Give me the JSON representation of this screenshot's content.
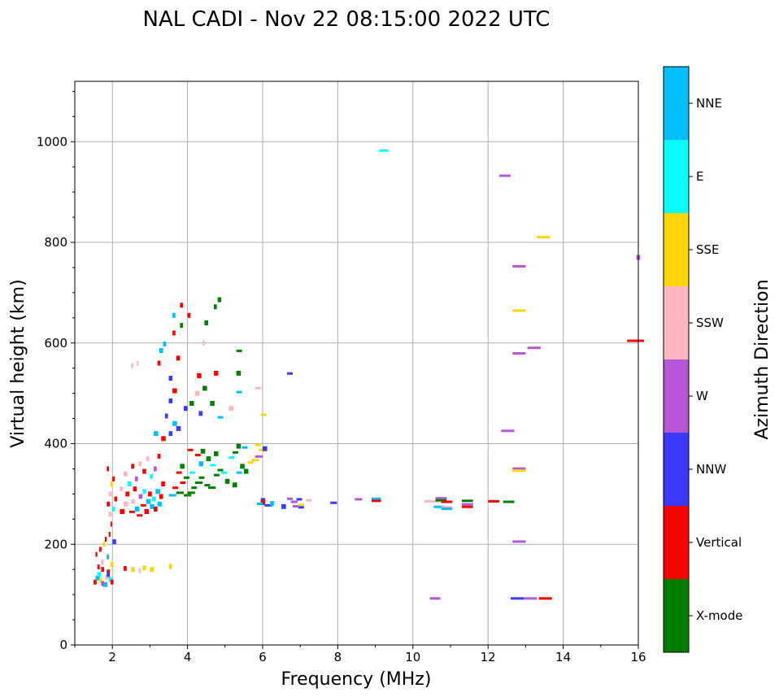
{
  "chart_data": {
    "type": "scatter",
    "title": "NAL CADI - Nov 22 08:15:00 2022 UTC",
    "xlabel": "Frequency (MHz)",
    "ylabel": "Virtual height (km)",
    "xlim": [
      1,
      16
    ],
    "ylim": [
      0,
      1120
    ],
    "xticks": [
      2,
      4,
      6,
      8,
      10,
      12,
      14,
      16
    ],
    "yticks": [
      0,
      200,
      400,
      600,
      800,
      1000
    ],
    "grid": true,
    "colorbar": {
      "label": "Azimuth Direction",
      "categories": [
        "X-mode",
        "Vertical",
        "NNW",
        "W",
        "SSW",
        "SSE",
        "E",
        "NNE"
      ],
      "colors": [
        "#008000",
        "#ff0000",
        "#3a3aff",
        "#b557d6",
        "#ffb6c1",
        "#ffd700",
        "#00ffff",
        "#00bfff"
      ]
    },
    "point_fields": [
      "freq_MHz",
      "height_km",
      "direction_index",
      "freq_width_MHz"
    ],
    "points": [
      [
        9.1,
        980,
        6,
        0.25
      ],
      [
        12.3,
        930,
        3,
        0.3
      ],
      [
        13.3,
        808,
        5,
        0.35
      ],
      [
        15.95,
        770,
        3,
        0.1
      ],
      [
        12.65,
        750,
        3,
        0.35
      ],
      [
        12.65,
        662,
        5,
        0.35
      ],
      [
        15.7,
        602,
        1,
        0.45
      ],
      [
        13.05,
        588,
        3,
        0.35
      ],
      [
        12.65,
        577,
        3,
        0.35
      ],
      [
        12.35,
        423,
        3,
        0.35
      ],
      [
        12.65,
        348,
        3,
        0.35
      ],
      [
        12.65,
        344,
        5,
        0.35
      ],
      [
        12.65,
        203,
        3,
        0.35
      ],
      [
        10.45,
        90,
        3,
        0.28
      ],
      [
        12.6,
        90,
        2,
        0.35
      ],
      [
        12.95,
        90,
        3,
        0.35
      ],
      [
        13.35,
        90,
        1,
        0.35
      ],
      [
        8.45,
        287,
        3,
        0.2
      ],
      [
        8.9,
        288,
        7,
        0.25
      ],
      [
        8.9,
        284,
        1,
        0.25
      ],
      [
        10.3,
        283,
        4,
        0.4
      ],
      [
        10.6,
        289,
        3,
        0.3
      ],
      [
        10.6,
        285,
        0,
        0.3
      ],
      [
        10.75,
        282,
        1,
        0.3
      ],
      [
        10.55,
        272,
        7,
        0.3
      ],
      [
        10.75,
        271,
        4,
        0.3
      ],
      [
        10.75,
        268,
        7,
        0.3
      ],
      [
        11.3,
        284,
        0,
        0.3
      ],
      [
        11.3,
        277,
        3,
        0.3
      ],
      [
        11.3,
        272,
        1,
        0.3
      ],
      [
        12,
        283,
        1,
        0.3
      ],
      [
        12.4,
        282,
        0,
        0.3
      ],
      [
        5.95,
        287,
        2,
        0.12
      ],
      [
        5.95,
        283,
        1,
        0.12
      ],
      [
        5.85,
        278,
        7,
        0.15
      ],
      [
        6.05,
        275,
        2,
        0.2
      ],
      [
        6.2,
        281,
        7,
        0.1
      ],
      [
        6.5,
        275,
        2,
        0.12
      ],
      [
        6.65,
        288,
        3,
        0.15
      ],
      [
        6.75,
        282,
        3,
        0.18
      ],
      [
        6.8,
        273,
        3,
        0.15
      ],
      [
        6.9,
        287,
        2,
        0.15
      ],
      [
        6.95,
        276,
        5,
        0.15
      ],
      [
        6.95,
        271,
        2,
        0.15
      ],
      [
        7.15,
        285,
        4,
        0.15
      ],
      [
        7.8,
        280,
        2,
        0.18
      ],
      [
        6.65,
        537,
        2,
        0.15
      ],
      [
        1.5,
        125,
        1,
        0.08
      ],
      [
        1.55,
        133,
        7,
        0.12
      ],
      [
        1.6,
        140,
        6,
        0.1
      ],
      [
        1.65,
        128,
        5,
        0.08
      ],
      [
        1.7,
        150,
        1,
        0.08
      ],
      [
        1.75,
        120,
        7,
        0.12
      ],
      [
        1.8,
        135,
        4,
        0.1
      ],
      [
        1.85,
        145,
        1,
        0.08
      ],
      [
        1.9,
        130,
        6,
        0.1
      ],
      [
        1.95,
        125,
        1,
        0.08
      ],
      [
        1.6,
        155,
        1,
        0.06
      ],
      [
        1.7,
        165,
        4,
        0.06
      ],
      [
        1.55,
        180,
        1,
        0.05
      ],
      [
        1.65,
        190,
        1,
        0.06
      ],
      [
        1.75,
        200,
        5,
        0.06
      ],
      [
        1.8,
        210,
        1,
        0.05
      ],
      [
        1.85,
        175,
        7,
        0.06
      ],
      [
        1.9,
        220,
        1,
        0.05
      ],
      [
        2.0,
        205,
        2,
        0.1
      ],
      [
        1.95,
        160,
        5,
        0.08
      ],
      [
        1.85,
        140,
        2,
        0.08
      ],
      [
        1.7,
        122,
        3,
        0.08
      ],
      [
        1.95,
        240,
        1,
        0.04
      ],
      [
        2.3,
        152,
        1,
        0.08
      ],
      [
        2.5,
        150,
        5,
        0.1
      ],
      [
        2.8,
        153,
        5,
        0.1
      ],
      [
        3.0,
        150,
        5,
        0.1
      ],
      [
        2.7,
        148,
        4,
        0.06
      ],
      [
        3.5,
        156,
        5,
        0.08
      ],
      [
        1.85,
        280,
        1,
        0.08
      ],
      [
        1.9,
        300,
        4,
        0.08
      ],
      [
        1.95,
        320,
        5,
        0.06
      ],
      [
        1.85,
        350,
        1,
        0.06
      ],
      [
        2.0,
        270,
        6,
        0.06
      ],
      [
        2.05,
        290,
        1,
        0.08
      ],
      [
        1.9,
        260,
        4,
        0.08
      ],
      [
        2.0,
        330,
        1,
        0.06
      ],
      [
        2.2,
        265,
        1,
        0.12
      ],
      [
        2.3,
        280,
        4,
        0.12
      ],
      [
        2.35,
        300,
        1,
        0.1
      ],
      [
        2.45,
        262,
        1,
        0.15
      ],
      [
        2.5,
        285,
        4,
        0.1
      ],
      [
        2.55,
        310,
        1,
        0.1
      ],
      [
        2.6,
        270,
        7,
        0.12
      ],
      [
        2.65,
        255,
        1,
        0.15
      ],
      [
        2.7,
        295,
        3,
        0.1
      ],
      [
        2.75,
        275,
        1,
        0.15
      ],
      [
        2.8,
        305,
        6,
        0.1
      ],
      [
        2.85,
        265,
        1,
        0.12
      ],
      [
        2.9,
        285,
        7,
        0.12
      ],
      [
        2.95,
        300,
        1,
        0.1
      ],
      [
        3.0,
        275,
        7,
        0.12
      ],
      [
        3.05,
        290,
        6,
        0.1
      ],
      [
        3.1,
        270,
        1,
        0.1
      ],
      [
        3.15,
        305,
        7,
        0.12
      ],
      [
        3.2,
        280,
        7,
        0.12
      ],
      [
        3.25,
        295,
        1,
        0.1
      ],
      [
        2.3,
        340,
        4,
        0.1
      ],
      [
        2.5,
        355,
        1,
        0.08
      ],
      [
        2.6,
        330,
        3,
        0.08
      ],
      [
        2.7,
        360,
        4,
        0.08
      ],
      [
        2.8,
        345,
        1,
        0.1
      ],
      [
        2.9,
        370,
        4,
        0.08
      ],
      [
        3.0,
        335,
        6,
        0.08
      ],
      [
        3.1,
        350,
        3,
        0.08
      ],
      [
        3.2,
        375,
        1,
        0.08
      ],
      [
        3.3,
        320,
        1,
        0.1
      ],
      [
        2.4,
        320,
        6,
        0.1
      ],
      [
        2.2,
        310,
        4,
        0.08
      ],
      [
        3.5,
        295,
        7,
        0.2
      ],
      [
        3.6,
        310,
        1,
        0.15
      ],
      [
        3.7,
        300,
        0,
        0.2
      ],
      [
        3.8,
        320,
        1,
        0.15
      ],
      [
        3.9,
        295,
        0,
        0.2
      ],
      [
        4.0,
        300,
        0,
        0.2
      ],
      [
        4.1,
        310,
        0,
        0.15
      ],
      [
        4.2,
        320,
        0,
        0.2
      ],
      [
        4.3,
        330,
        0,
        0.15
      ],
      [
        4.45,
        315,
        0,
        0.15
      ],
      [
        4.55,
        310,
        0,
        0.2
      ],
      [
        4.7,
        335,
        0,
        0.15
      ],
      [
        4.8,
        345,
        0,
        0.15
      ],
      [
        4.9,
        340,
        6,
        0.15
      ],
      [
        5.0,
        325,
        0,
        0.12
      ],
      [
        5.2,
        318,
        0,
        0.12
      ],
      [
        5.3,
        340,
        7,
        0.15
      ],
      [
        5.4,
        355,
        0,
        0.12
      ],
      [
        5.5,
        345,
        0,
        0.12
      ],
      [
        5.6,
        360,
        5,
        0.15
      ],
      [
        5.7,
        365,
        5,
        0.2
      ],
      [
        5.8,
        372,
        3,
        0.2
      ],
      [
        5.9,
        385,
        5,
        0.15
      ],
      [
        6.0,
        390,
        2,
        0.12
      ],
      [
        5.3,
        395,
        0,
        0.12
      ],
      [
        5.45,
        390,
        7,
        0.15
      ],
      [
        5.2,
        380,
        0,
        0.15
      ],
      [
        3.7,
        340,
        1,
        0.15
      ],
      [
        3.8,
        355,
        0,
        0.12
      ],
      [
        4.0,
        385,
        1,
        0.15
      ],
      [
        4.2,
        375,
        1,
        0.15
      ],
      [
        4.35,
        385,
        0,
        0.12
      ],
      [
        4.5,
        370,
        0,
        0.12
      ],
      [
        4.7,
        380,
        0,
        0.12
      ],
      [
        5.1,
        370,
        6,
        0.15
      ],
      [
        3.9,
        330,
        0,
        0.15
      ],
      [
        4.05,
        340,
        6,
        0.15
      ],
      [
        4.3,
        360,
        7,
        0.12
      ],
      [
        4.6,
        355,
        6,
        0.15
      ],
      [
        5.8,
        395,
        5,
        0.15
      ],
      [
        3.5,
        420,
        2,
        0.1
      ],
      [
        3.6,
        440,
        7,
        0.12
      ],
      [
        3.7,
        430,
        2,
        0.12
      ],
      [
        3.4,
        455,
        2,
        0.08
      ],
      [
        3.5,
        485,
        2,
        0.1
      ],
      [
        3.6,
        505,
        1,
        0.12
      ],
      [
        3.9,
        470,
        2,
        0.1
      ],
      [
        4.05,
        480,
        0,
        0.12
      ],
      [
        4.2,
        500,
        4,
        0.12
      ],
      [
        4.3,
        460,
        2,
        0.1
      ],
      [
        4.4,
        510,
        0,
        0.12
      ],
      [
        4.6,
        480,
        0,
        0.12
      ],
      [
        4.8,
        450,
        7,
        0.15
      ],
      [
        5.1,
        470,
        4,
        0.12
      ],
      [
        5.3,
        500,
        7,
        0.15
      ],
      [
        5.3,
        540,
        0,
        0.12
      ],
      [
        5.8,
        508,
        4,
        0.15
      ],
      [
        5.95,
        455,
        5,
        0.15
      ],
      [
        5.3,
        582,
        0,
        0.15
      ],
      [
        3.5,
        530,
        2,
        0.1
      ],
      [
        3.25,
        585,
        7,
        0.1
      ],
      [
        3.35,
        598,
        7,
        0.08
      ],
      [
        3.6,
        620,
        1,
        0.08
      ],
      [
        3.6,
        655,
        7,
        0.08
      ],
      [
        3.8,
        635,
        0,
        0.08
      ],
      [
        3.8,
        675,
        1,
        0.08
      ],
      [
        4.0,
        655,
        1,
        0.08
      ],
      [
        4.45,
        640,
        0,
        0.1
      ],
      [
        4.7,
        672,
        0,
        0.08
      ],
      [
        4.8,
        686,
        0,
        0.1
      ],
      [
        4.25,
        535,
        1,
        0.12
      ],
      [
        4.7,
        540,
        1,
        0.12
      ],
      [
        3.7,
        570,
        1,
        0.1
      ],
      [
        2.5,
        555,
        4,
        0.06
      ],
      [
        2.65,
        560,
        4,
        0.05
      ],
      [
        3.2,
        560,
        1,
        0.08
      ],
      [
        4.4,
        600,
        4,
        0.06
      ],
      [
        3.3,
        410,
        1,
        0.12
      ],
      [
        3.1,
        420,
        7,
        0.12
      ]
    ]
  }
}
